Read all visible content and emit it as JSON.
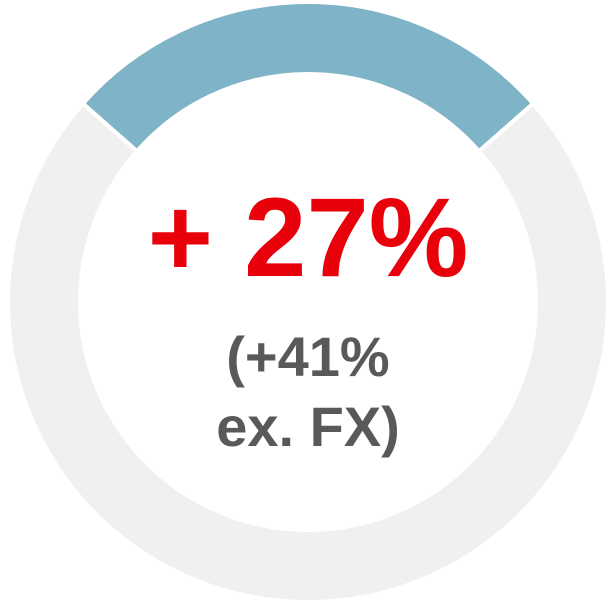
{
  "chart_data": {
    "type": "donut",
    "values": [
      27,
      73
    ],
    "colors": [
      "#7fb3c8",
      "#f0f0f0"
    ],
    "annotations": [
      "+ 27%",
      "(+41%",
      "ex. FX)"
    ]
  }
}
